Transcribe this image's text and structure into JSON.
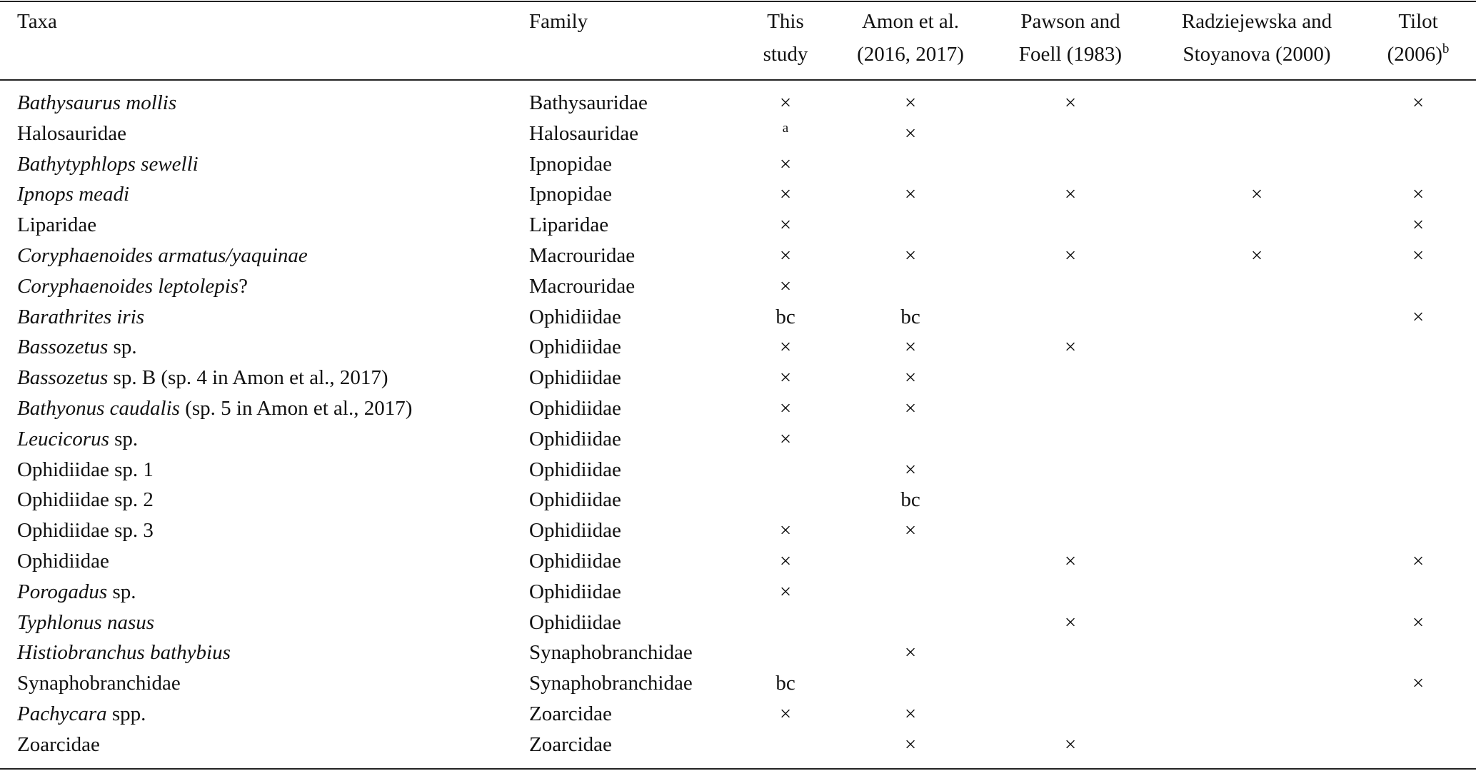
{
  "header": {
    "columns": [
      {
        "lines": [
          "Taxa"
        ]
      },
      {
        "lines": [
          "Family"
        ]
      },
      {
        "lines": [
          "This",
          "study"
        ]
      },
      {
        "lines": [
          "Amon et al.",
          "(2016, 2017)"
        ]
      },
      {
        "lines": [
          "Pawson and",
          "Foell (1983)"
        ]
      },
      {
        "lines": [
          "Radziejewska and",
          "Stoyanova (2000)"
        ]
      },
      {
        "lines": [
          "Tilot",
          "(2006)"
        ],
        "sup": "b"
      }
    ]
  },
  "rows": [
    {
      "taxon": {
        "italic": "Bathysaurus mollis"
      },
      "family": "Bathysauridae",
      "cells": [
        "×",
        "×",
        "×",
        null,
        "×"
      ]
    },
    {
      "taxon": {
        "roman": "Halosauridae"
      },
      "family": "Halosauridae",
      "cells": [
        {
          "sup": "a"
        },
        "×",
        null,
        null,
        null
      ]
    },
    {
      "taxon": {
        "italic": "Bathytyphlops sewelli"
      },
      "family": "Ipnopidae",
      "cells": [
        "×",
        null,
        null,
        null,
        null
      ]
    },
    {
      "taxon": {
        "italic": "Ipnops meadi"
      },
      "family": "Ipnopidae",
      "cells": [
        "×",
        "×",
        "×",
        "×",
        "×"
      ]
    },
    {
      "taxon": {
        "roman": "Liparidae"
      },
      "family": "Liparidae",
      "cells": [
        "×",
        null,
        null,
        null,
        "×"
      ]
    },
    {
      "taxon": {
        "italic": "Coryphaenoides armatus/yaquinae"
      },
      "family": "Macrouridae",
      "cells": [
        "×",
        "×",
        "×",
        "×",
        "×"
      ]
    },
    {
      "taxon": {
        "italic": "Coryphaenoides leptolepis",
        "roman": "?"
      },
      "family": "Macrouridae",
      "cells": [
        "×",
        null,
        null,
        null,
        null
      ]
    },
    {
      "taxon": {
        "italic": "Barathrites iris"
      },
      "family": "Ophidiidae",
      "cells": [
        "bc",
        "bc",
        null,
        null,
        "×"
      ]
    },
    {
      "taxon": {
        "italic": "Bassozetus",
        "roman": " sp."
      },
      "family": "Ophidiidae",
      "cells": [
        "×",
        "×",
        "×",
        null,
        null
      ]
    },
    {
      "taxon": {
        "italic": "Bassozetus",
        "roman": " sp. B (sp. 4 in Amon et al., 2017)"
      },
      "family": "Ophidiidae",
      "cells": [
        "×",
        "×",
        null,
        null,
        null
      ]
    },
    {
      "taxon": {
        "italic": "Bathyonus caudalis",
        "roman": " (sp. 5 in Amon et al., 2017)"
      },
      "family": "Ophidiidae",
      "cells": [
        "×",
        "×",
        null,
        null,
        null
      ]
    },
    {
      "taxon": {
        "italic": "Leucicorus",
        "roman": " sp."
      },
      "family": "Ophidiidae",
      "cells": [
        "×",
        null,
        null,
        null,
        null
      ]
    },
    {
      "taxon": {
        "roman": "Ophidiidae sp. 1"
      },
      "family": "Ophidiidae",
      "cells": [
        null,
        "×",
        null,
        null,
        null
      ]
    },
    {
      "taxon": {
        "roman": "Ophidiidae sp. 2"
      },
      "family": "Ophidiidae",
      "cells": [
        null,
        "bc",
        null,
        null,
        null
      ]
    },
    {
      "taxon": {
        "roman": "Ophidiidae sp. 3"
      },
      "family": "Ophidiidae",
      "cells": [
        "×",
        "×",
        null,
        null,
        null
      ]
    },
    {
      "taxon": {
        "roman": "Ophidiidae"
      },
      "family": "Ophidiidae",
      "cells": [
        "×",
        null,
        "×",
        null,
        "×"
      ]
    },
    {
      "taxon": {
        "italic": "Porogadus",
        "roman": " sp."
      },
      "family": "Ophidiidae",
      "cells": [
        "×",
        null,
        null,
        null,
        null
      ]
    },
    {
      "taxon": {
        "italic": "Typhlonus nasus"
      },
      "family": "Ophidiidae",
      "cells": [
        null,
        null,
        "×",
        null,
        "×"
      ]
    },
    {
      "taxon": {
        "italic": "Histiobranchus bathybius"
      },
      "family": "Synaphobranchidae",
      "cells": [
        null,
        "×",
        null,
        null,
        null
      ]
    },
    {
      "taxon": {
        "roman": "Synaphobranchidae"
      },
      "family": "Synaphobranchidae",
      "cells": [
        "bc",
        null,
        null,
        null,
        "×"
      ]
    },
    {
      "taxon": {
        "italic": "Pachycara",
        "roman": " spp."
      },
      "family": "Zoarcidae",
      "cells": [
        "×",
        "×",
        null,
        null,
        null
      ]
    },
    {
      "taxon": {
        "roman": "Zoarcidae"
      },
      "family": "Zoarcidae",
      "cells": [
        null,
        "×",
        "×",
        null,
        null
      ]
    }
  ]
}
